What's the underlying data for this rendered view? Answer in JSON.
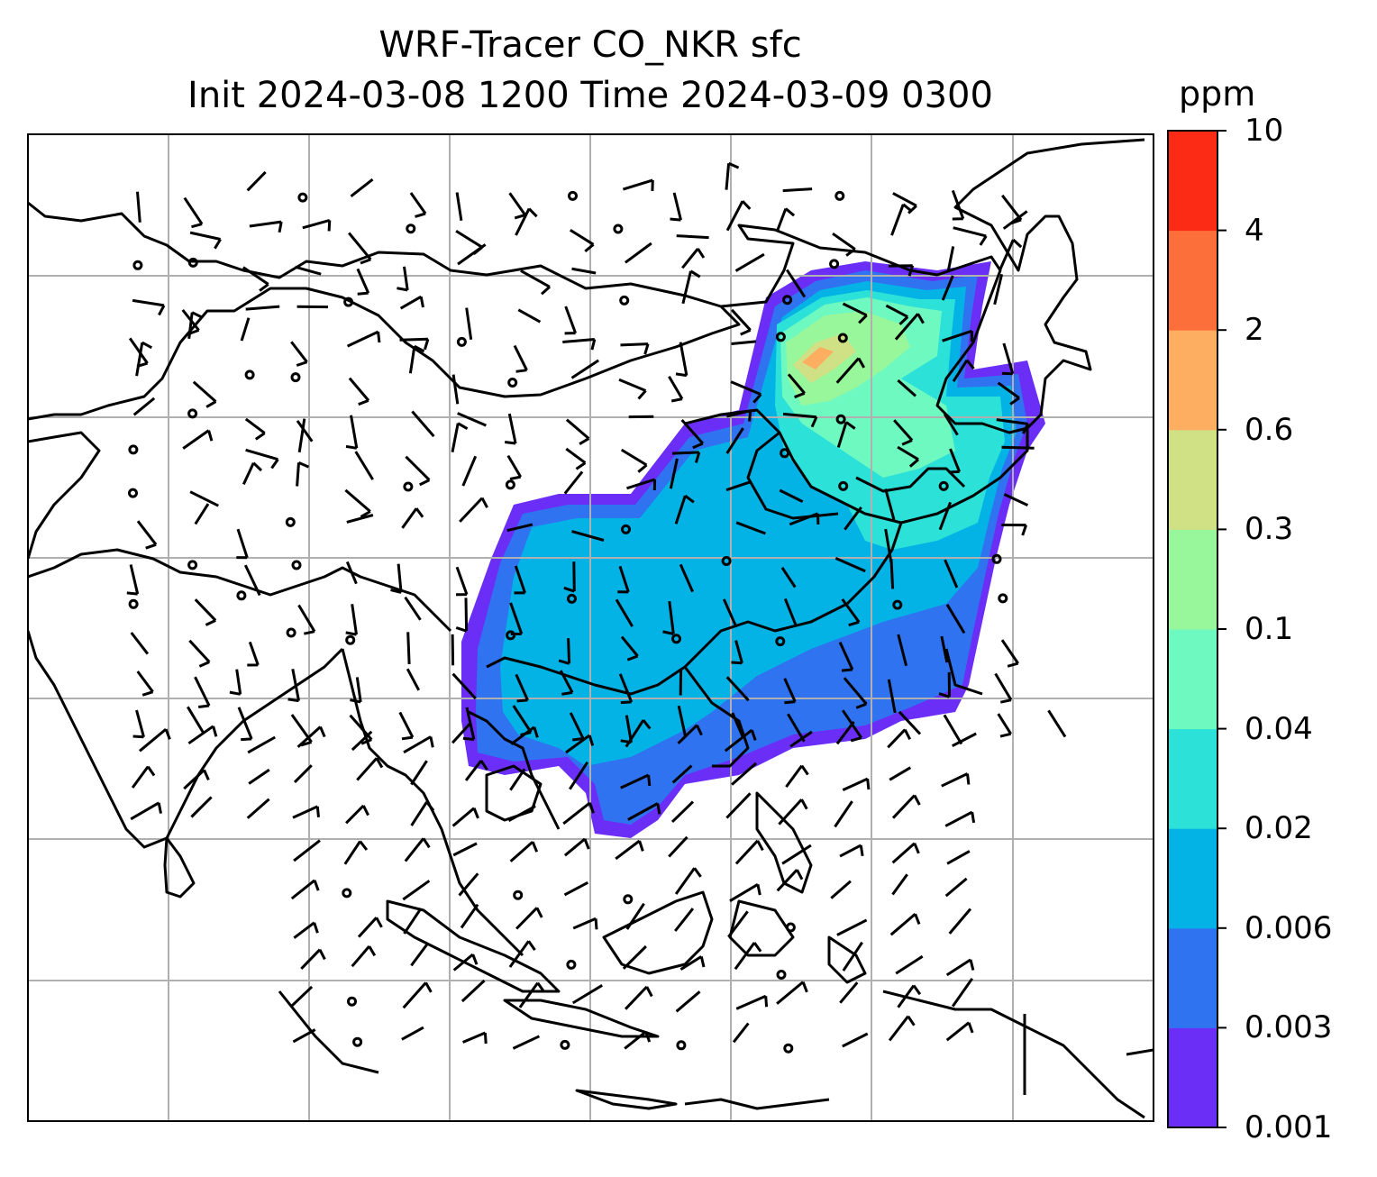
{
  "title": {
    "line1": "WRF-Tracer CO_NKR sfc",
    "line2": "Init 2024-03-08 1200 Time 2024-03-09 0300"
  },
  "colorbar": {
    "unit": "ppm",
    "levels": [
      "0.001",
      "0.003",
      "0.006",
      "0.02",
      "0.04",
      "0.1",
      "0.3",
      "0.6",
      "2",
      "4",
      "10"
    ],
    "colors": [
      "#6a2ef7",
      "#3073f0",
      "#03b3e6",
      "#2ce1d8",
      "#6ef9c0",
      "#98f79a",
      "#cfe085",
      "#fdae61",
      "#fc6f3a",
      "#fb2b16"
    ]
  },
  "map": {
    "region": "East Asia / Southeast Asia",
    "field": "CO_NKR surface tracer concentration",
    "overlay": "wind barbs",
    "gridlines": true
  }
}
